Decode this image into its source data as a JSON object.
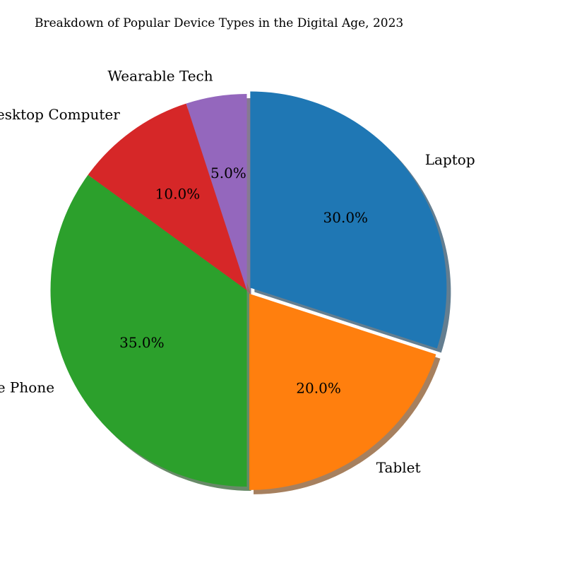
{
  "chart_data": {
    "type": "pie",
    "title": "Breakdown of Popular Device Types in the Digital Age, 2023",
    "categories": [
      "Laptop",
      "Tablet",
      "Mobile Phone",
      "Desktop Computer",
      "Wearable Tech"
    ],
    "values": [
      30,
      20,
      35,
      10,
      5
    ],
    "value_labels": [
      "30.0%",
      "20.0%",
      "35.0%",
      "10.0%",
      "5.0%"
    ],
    "colors": [
      "#1f77b4",
      "#ff7f0e",
      "#2ca02c",
      "#d62728",
      "#9467bd"
    ],
    "start_angle_deg": 90,
    "direction": "clockwise",
    "shadow": true,
    "exploded": [
      "Laptop",
      "Tablet"
    ]
  }
}
